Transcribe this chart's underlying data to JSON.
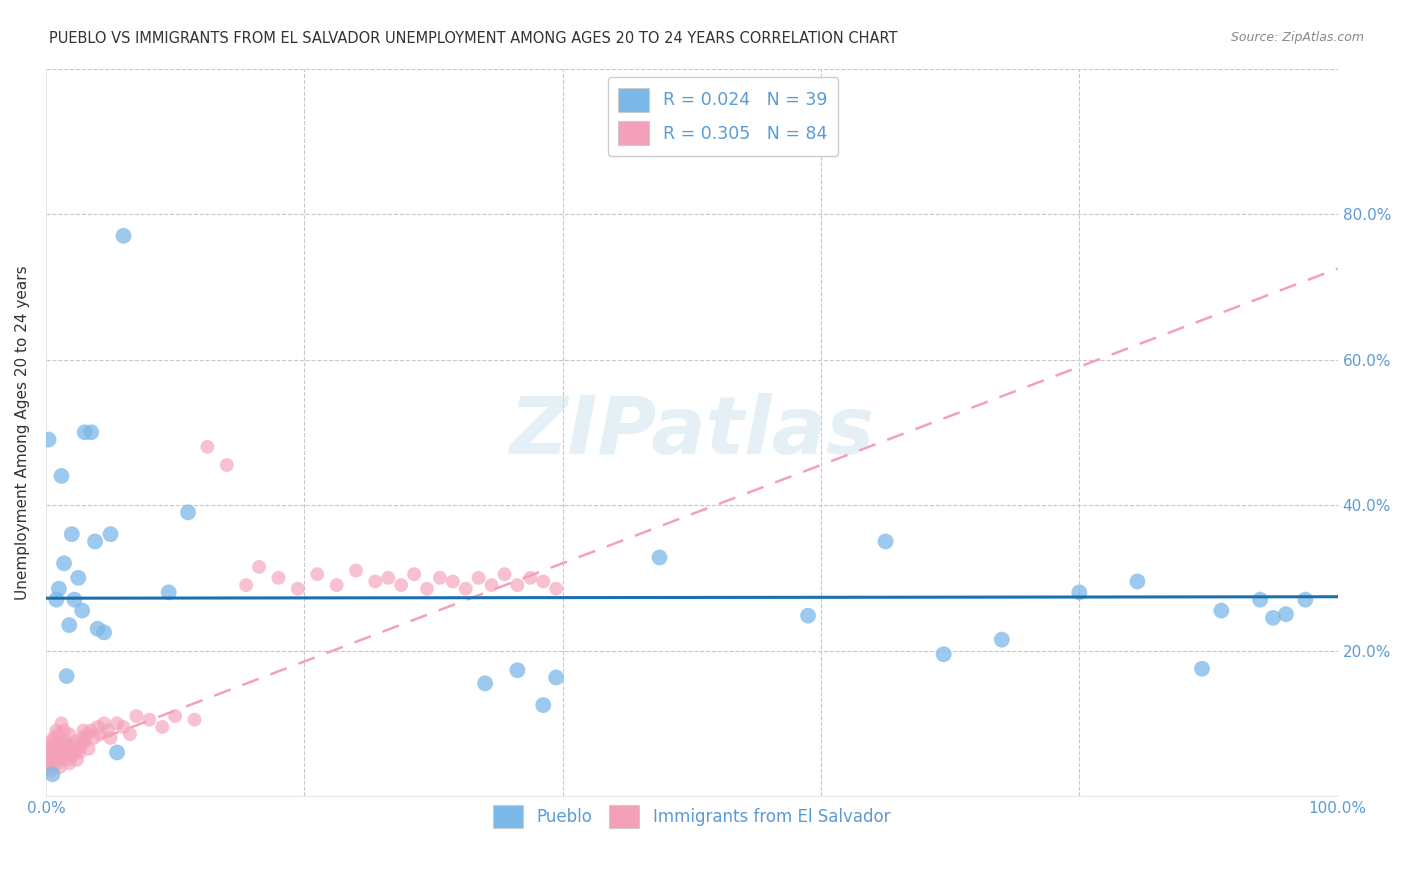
{
  "title": "PUEBLO VS IMMIGRANTS FROM EL SALVADOR UNEMPLOYMENT AMONG AGES 20 TO 24 YEARS CORRELATION CHART",
  "source": "Source: ZipAtlas.com",
  "ylabel": "Unemployment Among Ages 20 to 24 years",
  "xlim": [
    0.0,
    1.0
  ],
  "ylim": [
    0.0,
    1.0
  ],
  "xticks": [
    0.0,
    0.2,
    0.4,
    0.6,
    0.8,
    1.0
  ],
  "xticklabels": [
    "0.0%",
    "",
    "",
    "",
    "",
    "100.0%"
  ],
  "yticks": [
    0.0,
    0.2,
    0.4,
    0.6,
    0.8,
    1.0
  ],
  "right_yticklabels": [
    "",
    "20.0%",
    "40.0%",
    "60.0%",
    "80.0%",
    ""
  ],
  "left_yticklabels": [
    "",
    "",
    "",
    "",
    "",
    ""
  ],
  "pueblo_color": "#7bb8e8",
  "salvador_color": "#f4a0b8",
  "pueblo_line_color": "#1a6faf",
  "salvador_line_color": "#f4a0b8",
  "pueblo_R": 0.024,
  "pueblo_N": 39,
  "salvador_R": 0.305,
  "salvador_N": 84,
  "legend_label_pueblo": "Pueblo",
  "legend_label_salvador": "Immigrants from El Salvador",
  "watermark": "ZIPatlas",
  "tick_color": "#5b9bd5",
  "grid_color": "#c8c8c8",
  "title_color": "#333333",
  "source_color": "#888888",
  "ylabel_color": "#333333",
  "pueblo_scatter_x": [
    0.002,
    0.005,
    0.008,
    0.01,
    0.012,
    0.014,
    0.016,
    0.018,
    0.02,
    0.022,
    0.025,
    0.028,
    0.03,
    0.035,
    0.038,
    0.04,
    0.045,
    0.05,
    0.055,
    0.06,
    0.095,
    0.11,
    0.34,
    0.365,
    0.385,
    0.395,
    0.475,
    0.59,
    0.65,
    0.695,
    0.74,
    0.8,
    0.845,
    0.895,
    0.91,
    0.94,
    0.95,
    0.96,
    0.975
  ],
  "pueblo_scatter_y": [
    0.49,
    0.03,
    0.27,
    0.285,
    0.44,
    0.32,
    0.165,
    0.235,
    0.36,
    0.27,
    0.3,
    0.255,
    0.5,
    0.5,
    0.35,
    0.23,
    0.225,
    0.36,
    0.06,
    0.77,
    0.28,
    0.39,
    0.155,
    0.173,
    0.125,
    0.163,
    0.328,
    0.248,
    0.35,
    0.195,
    0.215,
    0.28,
    0.295,
    0.175,
    0.255,
    0.27,
    0.245,
    0.25,
    0.27
  ],
  "salvador_scatter_x": [
    0.001,
    0.002,
    0.002,
    0.003,
    0.003,
    0.004,
    0.004,
    0.005,
    0.005,
    0.006,
    0.006,
    0.007,
    0.007,
    0.008,
    0.008,
    0.009,
    0.009,
    0.01,
    0.01,
    0.011,
    0.011,
    0.012,
    0.013,
    0.014,
    0.014,
    0.015,
    0.015,
    0.016,
    0.017,
    0.018,
    0.018,
    0.019,
    0.02,
    0.021,
    0.022,
    0.023,
    0.024,
    0.025,
    0.026,
    0.027,
    0.028,
    0.029,
    0.03,
    0.032,
    0.033,
    0.035,
    0.037,
    0.04,
    0.042,
    0.045,
    0.048,
    0.05,
    0.055,
    0.06,
    0.065,
    0.07,
    0.08,
    0.09,
    0.1,
    0.115,
    0.125,
    0.14,
    0.155,
    0.165,
    0.18,
    0.195,
    0.21,
    0.225,
    0.24,
    0.255,
    0.265,
    0.275,
    0.285,
    0.295,
    0.305,
    0.315,
    0.325,
    0.335,
    0.345,
    0.355,
    0.365,
    0.375,
    0.385,
    0.395
  ],
  "salvador_scatter_y": [
    0.04,
    0.055,
    0.065,
    0.05,
    0.06,
    0.035,
    0.075,
    0.045,
    0.07,
    0.05,
    0.08,
    0.06,
    0.065,
    0.045,
    0.09,
    0.055,
    0.075,
    0.05,
    0.085,
    0.06,
    0.04,
    0.1,
    0.07,
    0.055,
    0.09,
    0.065,
    0.075,
    0.05,
    0.07,
    0.045,
    0.085,
    0.06,
    0.055,
    0.07,
    0.06,
    0.075,
    0.05,
    0.065,
    0.06,
    0.07,
    0.08,
    0.09,
    0.075,
    0.085,
    0.065,
    0.09,
    0.08,
    0.095,
    0.085,
    0.1,
    0.09,
    0.08,
    0.1,
    0.095,
    0.085,
    0.11,
    0.105,
    0.095,
    0.11,
    0.105,
    0.48,
    0.455,
    0.29,
    0.315,
    0.3,
    0.285,
    0.305,
    0.29,
    0.31,
    0.295,
    0.3,
    0.29,
    0.305,
    0.285,
    0.3,
    0.295,
    0.285,
    0.3,
    0.29,
    0.305,
    0.29,
    0.3,
    0.295,
    0.285
  ],
  "pueblo_line_y_intercept": 0.272,
  "pueblo_line_slope": 0.002,
  "salvador_line_y_at_0": 0.05,
  "salvador_line_y_at_04": 0.32
}
